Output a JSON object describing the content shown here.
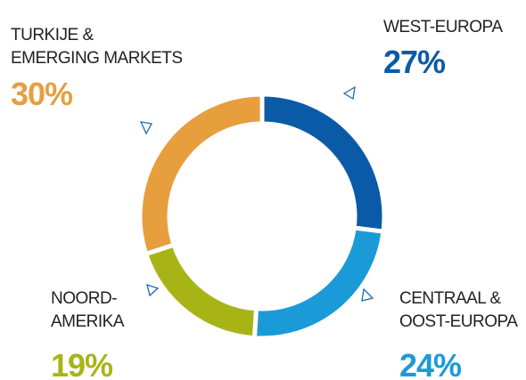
{
  "chart_data": {
    "type": "pie",
    "donut": true,
    "categories": [
      "WEST-EUROPA",
      "CENTRAAL &\nOOST-EUROPA",
      "NOORD-\nAMERIKA",
      "TURKIJE &\nEMERGING MARKETS"
    ],
    "values": [
      27,
      24,
      19,
      30
    ],
    "value_labels": [
      "27%",
      "24%",
      "19%",
      "30%"
    ],
    "colors": [
      "#0a5aa8",
      "#1a9bd7",
      "#a8b416",
      "#e79e3d"
    ]
  }
}
